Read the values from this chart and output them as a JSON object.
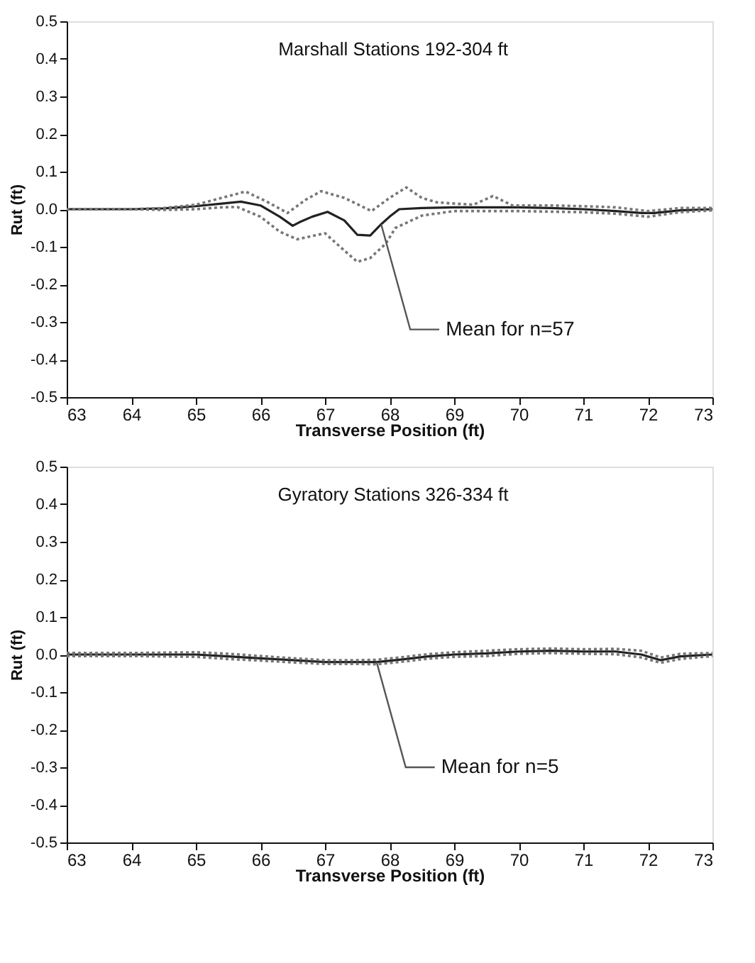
{
  "chart_data": [
    {
      "type": "line",
      "title": "Marshall Stations 192-304 ft",
      "xlabel": "Transverse Position (ft)",
      "ylabel": "Rut (ft)",
      "xlim": [
        63,
        73
      ],
      "xticks": [
        63,
        64,
        65,
        66,
        67,
        68,
        69,
        70,
        71,
        72,
        73
      ],
      "ylim": [
        -0.5,
        0.5
      ],
      "yticks": [
        {
          "value": -0.5,
          "label": "-0.5"
        },
        {
          "value": -0.4,
          "label": "-0.4"
        },
        {
          "value": -0.3,
          "label": "-0.3"
        },
        {
          "value": -0.2,
          "label": "-0.2"
        },
        {
          "value": -0.1,
          "label": "-0.1"
        },
        {
          "value": 0,
          "label": "0.0"
        },
        {
          "value": 0.1,
          "label": "0.1"
        },
        {
          "value": 0.2,
          "label": "0.2"
        },
        {
          "value": 0.3,
          "label": "0.3"
        },
        {
          "value": 0.4,
          "label": "0.4"
        },
        {
          "value": 0.5,
          "label": "0.5"
        }
      ],
      "grid": false,
      "marker": "none",
      "annotations": [
        {
          "text": "Mean for n=57",
          "x": 67.87,
          "y": -0.04
        }
      ],
      "series": [
        {
          "color": "#222222",
          "line_style": "solid",
          "x": [
            63,
            64,
            64.5,
            65,
            65.4,
            65.7,
            66.0,
            66.3,
            66.5,
            66.6,
            66.8,
            67.04,
            67.3,
            67.5,
            67.7,
            67.87,
            68.0,
            68.15,
            68.5,
            69,
            69.5,
            70,
            70.5,
            71,
            71.5,
            71.9,
            72.1,
            72.5,
            73
          ],
          "values": [
            0,
            0,
            0.002,
            0.008,
            0.015,
            0.02,
            0.01,
            -0.02,
            -0.044,
            -0.035,
            -0.02,
            -0.007,
            -0.03,
            -0.068,
            -0.07,
            -0.04,
            -0.02,
            0,
            0.003,
            0.005,
            0.005,
            0.005,
            0.003,
            0,
            -0.005,
            -0.01,
            -0.01,
            -0.003,
            0
          ]
        },
        {
          "color": "#777777",
          "line_style": "dotted",
          "x": [
            63,
            64,
            64.5,
            65,
            65.4,
            65.77,
            66.1,
            66.42,
            66.7,
            66.94,
            67.3,
            67.72,
            68.0,
            68.26,
            68.5,
            68.74,
            69,
            69.3,
            69.6,
            69.9,
            70.5,
            71,
            71.5,
            72,
            72.5,
            73
          ],
          "values": [
            0,
            0,
            0.003,
            0.012,
            0.03,
            0.047,
            0.02,
            -0.01,
            0.025,
            0.048,
            0.03,
            -0.005,
            0.03,
            0.058,
            0.03,
            0.018,
            0.015,
            0.012,
            0.035,
            0.01,
            0.01,
            0.008,
            0.005,
            -0.005,
            0.003,
            0.003
          ]
        },
        {
          "color": "#777777",
          "line_style": "dotted",
          "x": [
            63,
            64,
            64.5,
            65,
            65.4,
            65.64,
            66.0,
            66.3,
            66.57,
            67.0,
            67.3,
            67.5,
            67.7,
            67.94,
            68.09,
            68.5,
            69,
            70,
            71,
            71.5,
            72,
            72.5,
            73
          ],
          "values": [
            0,
            0,
            -0.002,
            0,
            0.005,
            0.006,
            -0.02,
            -0.06,
            -0.08,
            -0.064,
            -0.11,
            -0.14,
            -0.13,
            -0.092,
            -0.05,
            -0.017,
            -0.005,
            -0.005,
            -0.008,
            -0.012,
            -0.02,
            -0.008,
            -0.003
          ]
        }
      ]
    },
    {
      "type": "line",
      "title": "Gyratory Stations 326-334 ft",
      "xlabel": "Transverse Position (ft)",
      "ylabel": "Rut (ft)",
      "xlim": [
        63,
        73
      ],
      "xticks": [
        63,
        64,
        65,
        66,
        67,
        68,
        69,
        70,
        71,
        72,
        73
      ],
      "ylim": [
        -0.5,
        0.5
      ],
      "yticks": [
        {
          "value": -0.5,
          "label": "-0.5"
        },
        {
          "value": -0.4,
          "label": "-0.4"
        },
        {
          "value": -0.3,
          "label": "-0.3"
        },
        {
          "value": -0.2,
          "label": "-0.2"
        },
        {
          "value": -0.1,
          "label": "-0.1"
        },
        {
          "value": 0,
          "label": "0.0"
        },
        {
          "value": 0.1,
          "label": "0.1"
        },
        {
          "value": 0.2,
          "label": "0.2"
        },
        {
          "value": 0.3,
          "label": "0.3"
        },
        {
          "value": 0.4,
          "label": "0.4"
        },
        {
          "value": 0.5,
          "label": "0.5"
        }
      ],
      "grid": false,
      "marker": "none",
      "annotations": [
        {
          "text": "Mean for n=5",
          "x": 67.8,
          "y": -0.02
        }
      ],
      "x": [
        63,
        64,
        65,
        65.5,
        66,
        66.5,
        67,
        67.5,
        67.8,
        68.2,
        68.6,
        69,
        69.5,
        70,
        70.5,
        71,
        71.5,
        71.9,
        72.2,
        72.5,
        73
      ],
      "series": [
        {
          "color": "#222222",
          "line_style": "solid",
          "values": [
            0,
            0,
            0,
            -0.005,
            -0.01,
            -0.015,
            -0.02,
            -0.02,
            -0.02,
            -0.013,
            -0.005,
            0,
            0.003,
            0.008,
            0.01,
            0.008,
            0.008,
            0,
            -0.015,
            -0.005,
            0
          ]
        },
        {
          "color": "#777777",
          "line_style": "dotted",
          "values": [
            0.004,
            0.004,
            0.006,
            0.002,
            -0.004,
            -0.01,
            -0.015,
            -0.015,
            -0.014,
            -0.007,
            0.001,
            0.006,
            0.01,
            0.014,
            0.016,
            0.014,
            0.015,
            0.01,
            -0.008,
            0.002,
            0.004
          ]
        },
        {
          "color": "#777777",
          "line_style": "dotted",
          "values": [
            -0.004,
            -0.004,
            -0.006,
            -0.012,
            -0.016,
            -0.021,
            -0.025,
            -0.025,
            -0.026,
            -0.019,
            -0.011,
            -0.006,
            -0.004,
            0.002,
            0.004,
            0.002,
            0.001,
            -0.008,
            -0.022,
            -0.012,
            -0.004
          ]
        }
      ]
    }
  ]
}
